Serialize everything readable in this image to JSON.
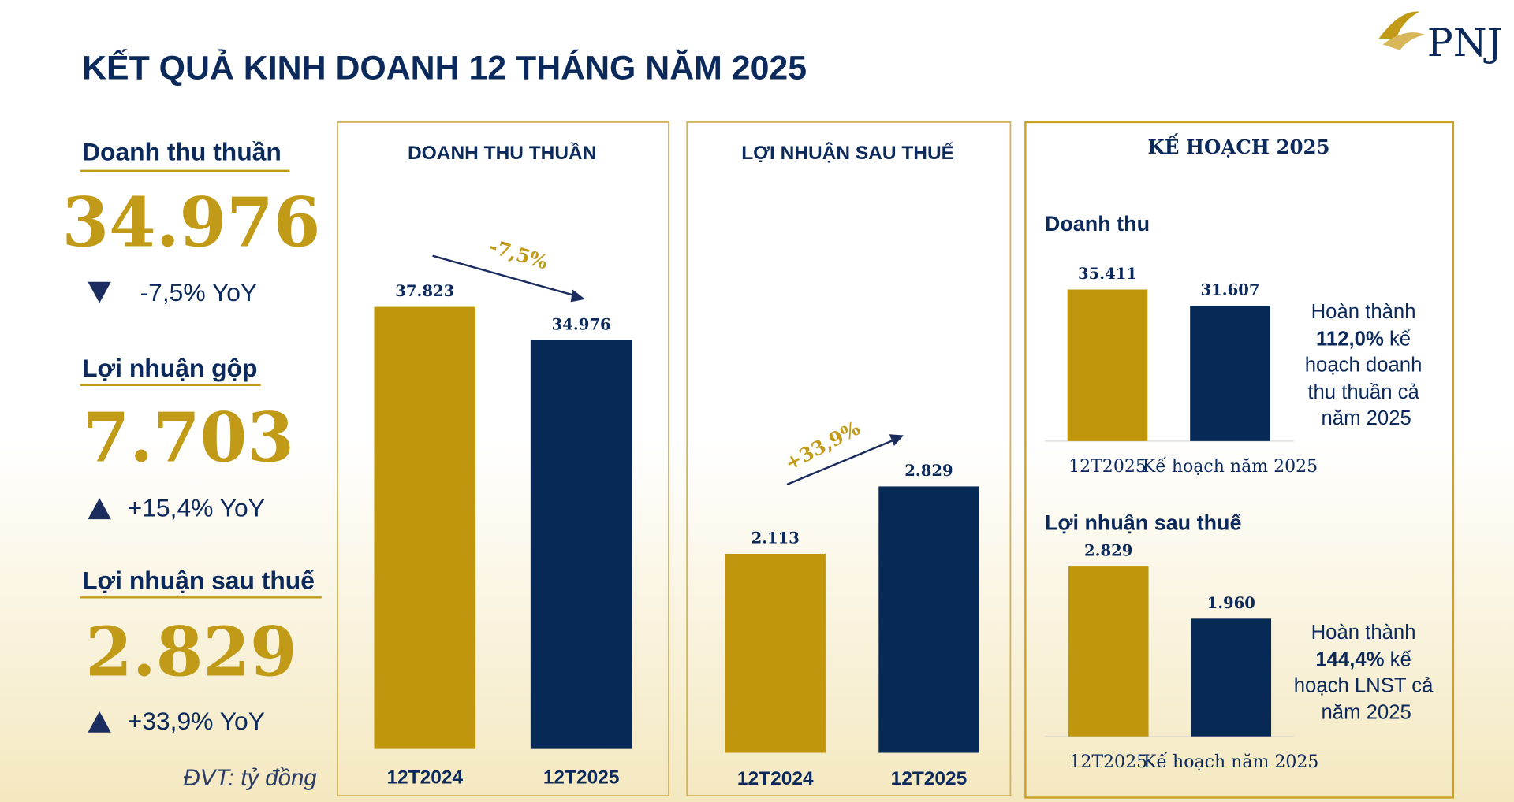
{
  "title": "KẾT QUẢ KINH DOANH 12 THÁNG NĂM 2025",
  "logo": "PNJ",
  "kpis": [
    {
      "label": "Doanh thu thuần",
      "value": "34.976",
      "change": "-7,5% YoY",
      "direction": "down"
    },
    {
      "label": "Lợi nhuận gộp",
      "value": "7.703",
      "change": "+15,4% YoY",
      "direction": "up"
    },
    {
      "label": "Lợi nhuận sau thuế",
      "value": "2.829",
      "change": "+33,9% YoY",
      "direction": "up"
    }
  ],
  "unit_note": "ĐVT: tỷ đồng",
  "plan_title": "KẾ HOẠCH 2025",
  "notes": [
    [
      "Hoàn thành",
      "112,0%",
      " kế",
      "hoạch doanh",
      "thu thuần cả",
      "năm 2025"
    ],
    [
      "Hoàn thành",
      "144,4%",
      " kế",
      "hoạch LNST cả",
      "năm 2025"
    ]
  ],
  "chart_data": [
    {
      "type": "bar",
      "title": "DOANH THU THUẦN",
      "categories": [
        "12T2024",
        "12T2025"
      ],
      "values": [
        37823,
        34976
      ],
      "value_labels": [
        "37.823",
        "34.976"
      ],
      "colors": [
        "#c0960f",
        "#062a55"
      ],
      "annotation": "-7,5%"
    },
    {
      "type": "bar",
      "title": "LỢI NHUẬN SAU THUẾ",
      "categories": [
        "12T2024",
        "12T2025"
      ],
      "values": [
        2113,
        2829
      ],
      "value_labels": [
        "2.113",
        "2.829"
      ],
      "colors": [
        "#c0960f",
        "#062a55"
      ],
      "annotation": "+33,9%"
    },
    {
      "type": "bar",
      "title": "Doanh thu",
      "categories": [
        "12T2025",
        "Kế hoạch năm 2025"
      ],
      "values": [
        35411,
        31607
      ],
      "value_labels": [
        "35.411",
        "31.607"
      ],
      "colors": [
        "#c0960f",
        "#062a55"
      ]
    },
    {
      "type": "bar",
      "title": "Lợi nhuận sau thuế",
      "categories": [
        "12T2025",
        "Kế hoạch năm 2025"
      ],
      "values": [
        2829,
        1960
      ],
      "value_labels": [
        "2.829",
        "1.960"
      ],
      "colors": [
        "#c0960f",
        "#062a55"
      ]
    }
  ]
}
